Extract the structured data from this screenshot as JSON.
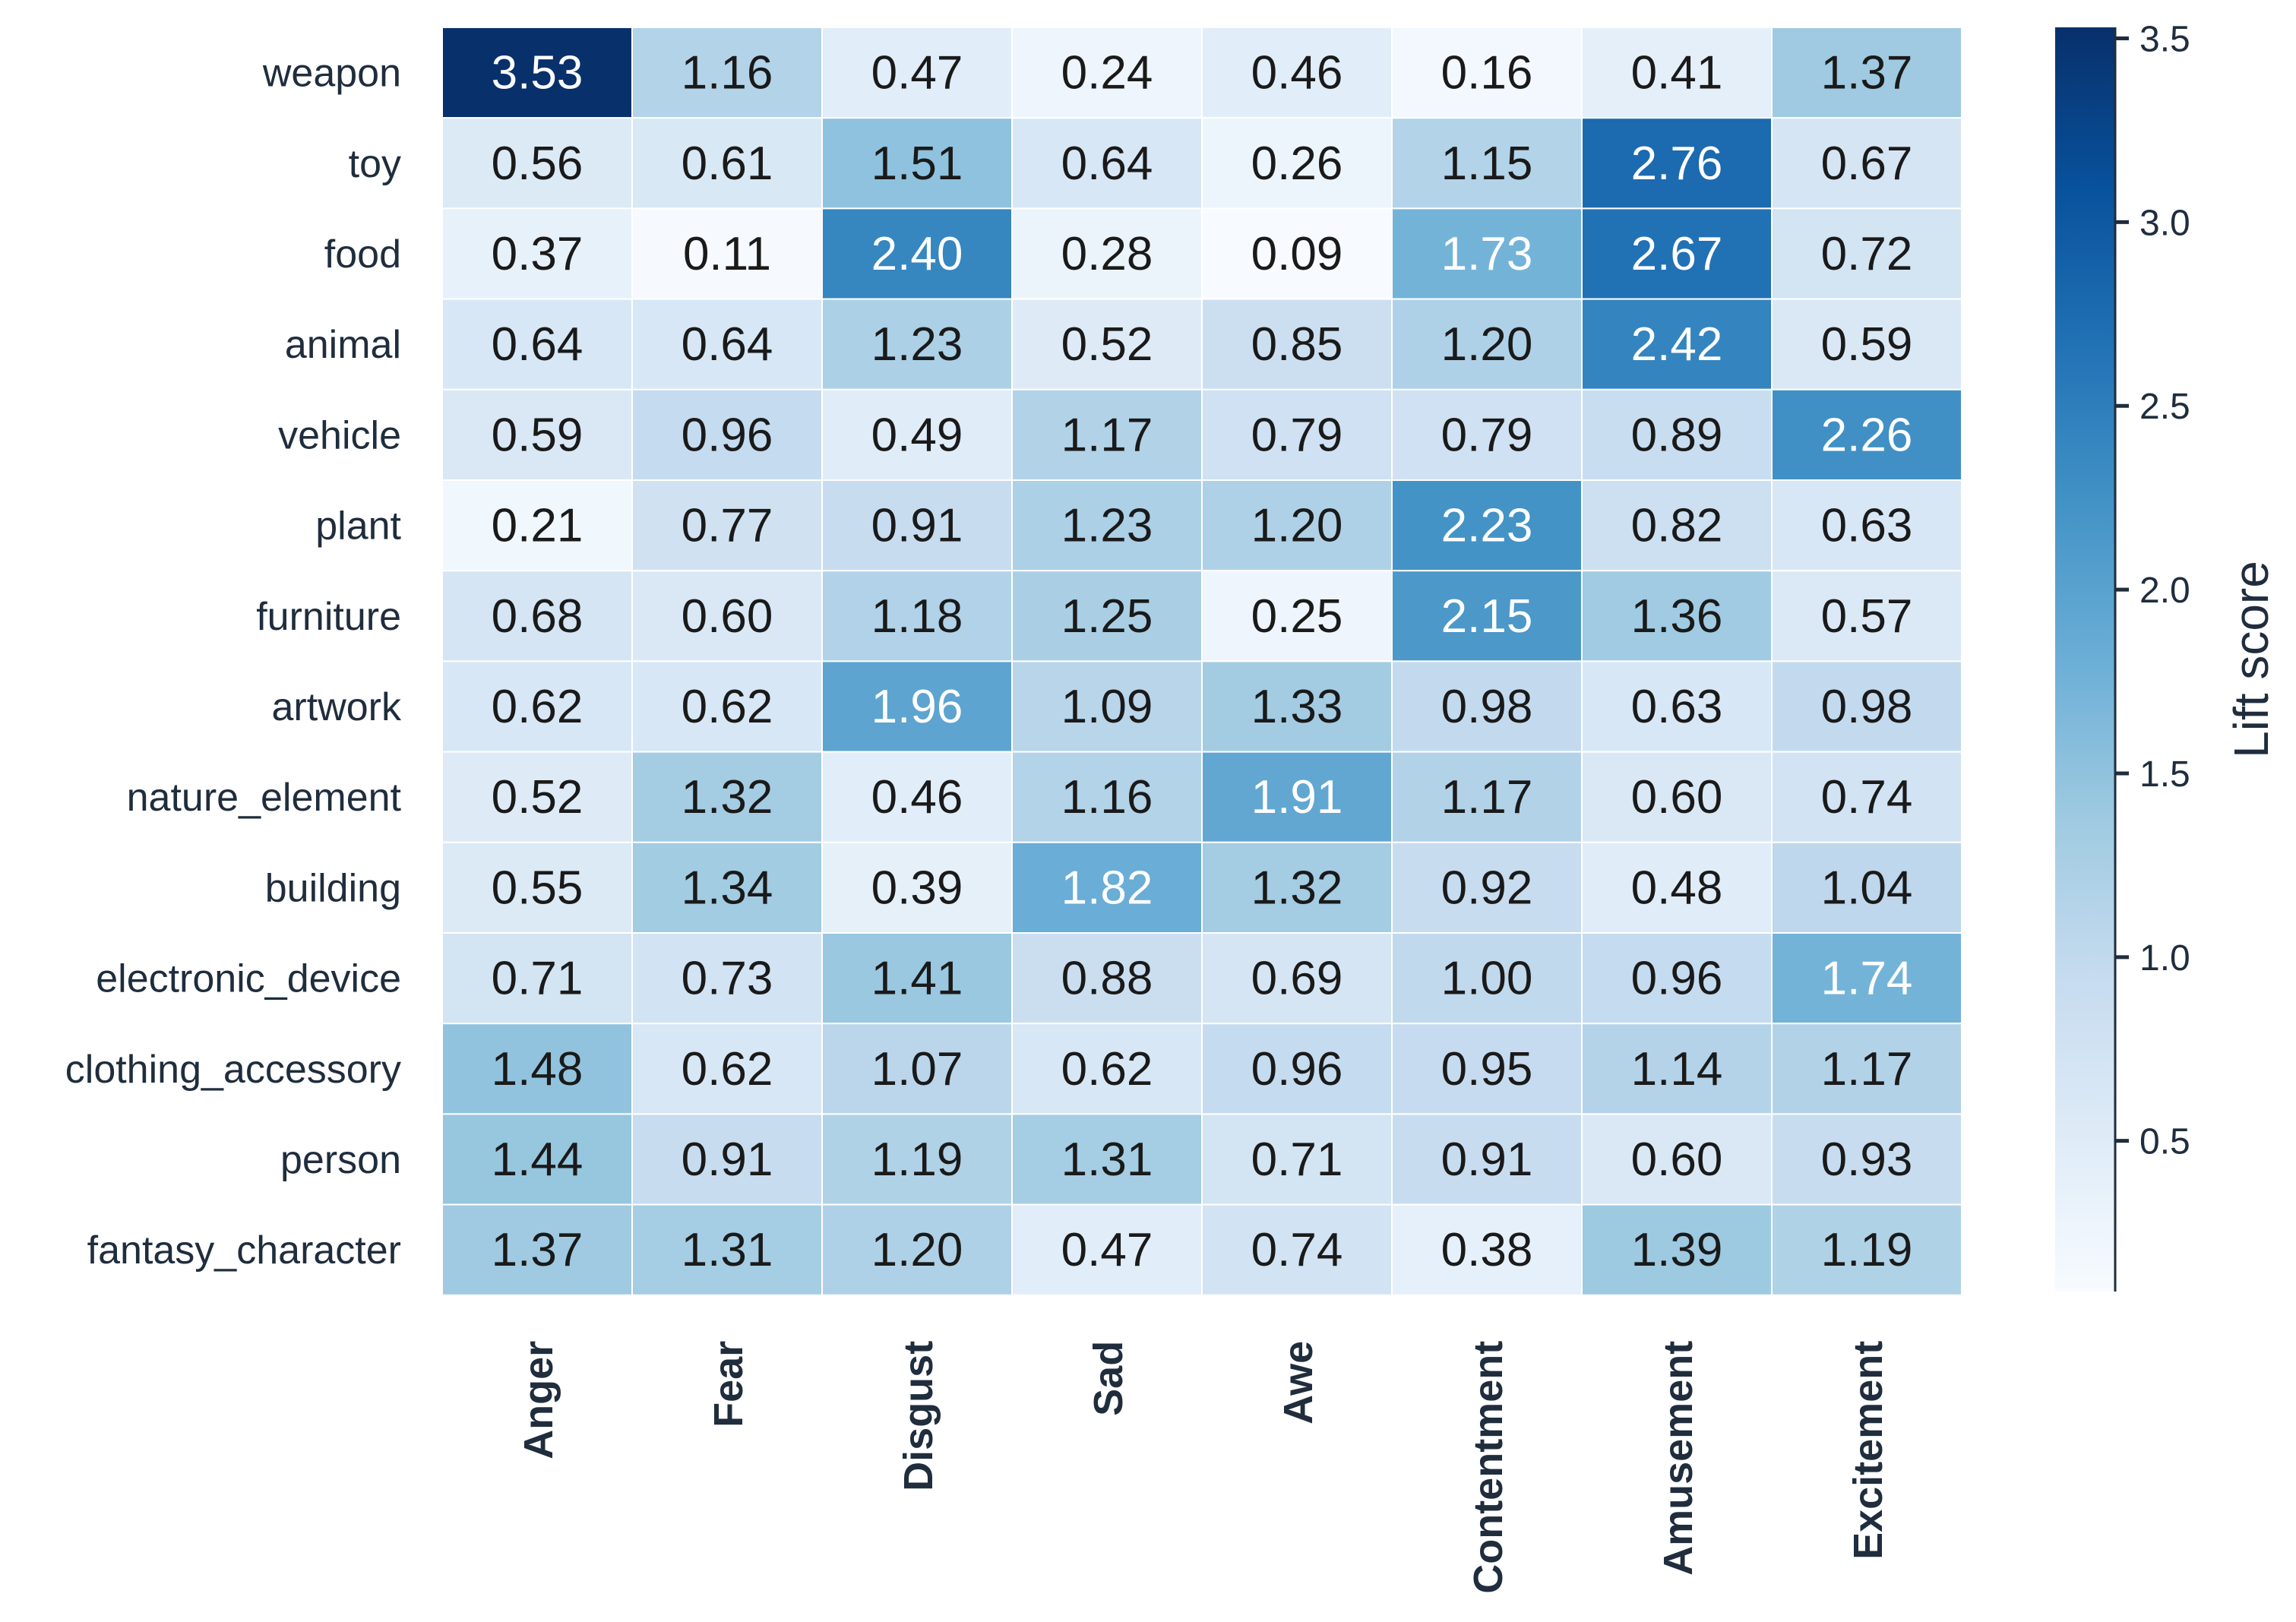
{
  "chart_data": {
    "type": "heatmap",
    "rows": [
      "weapon",
      "toy",
      "food",
      "animal",
      "vehicle",
      "plant",
      "furniture",
      "artwork",
      "nature_element",
      "building",
      "electronic_device",
      "clothing_accessory",
      "person",
      "fantasy_character"
    ],
    "columns": [
      "Anger",
      "Fear",
      "Disgust",
      "Sad",
      "Awe",
      "Contentment",
      "Amusement",
      "Excitement"
    ],
    "values": [
      [
        3.53,
        1.16,
        0.47,
        0.24,
        0.46,
        0.16,
        0.41,
        1.37
      ],
      [
        0.56,
        0.61,
        1.51,
        0.64,
        0.26,
        1.15,
        2.76,
        0.67
      ],
      [
        0.37,
        0.11,
        2.4,
        0.28,
        0.09,
        1.73,
        2.67,
        0.72
      ],
      [
        0.64,
        0.64,
        1.23,
        0.52,
        0.85,
        1.2,
        2.42,
        0.59
      ],
      [
        0.59,
        0.96,
        0.49,
        1.17,
        0.79,
        0.79,
        0.89,
        2.26
      ],
      [
        0.21,
        0.77,
        0.91,
        1.23,
        1.2,
        2.23,
        0.82,
        0.63
      ],
      [
        0.68,
        0.6,
        1.18,
        1.25,
        0.25,
        2.15,
        1.36,
        0.57
      ],
      [
        0.62,
        0.62,
        1.96,
        1.09,
        1.33,
        0.98,
        0.63,
        0.98
      ],
      [
        0.52,
        1.32,
        0.46,
        1.16,
        1.91,
        1.17,
        0.6,
        0.74
      ],
      [
        0.55,
        1.34,
        0.39,
        1.82,
        1.32,
        0.92,
        0.48,
        1.04
      ],
      [
        0.71,
        0.73,
        1.41,
        0.88,
        0.69,
        1.0,
        0.96,
        1.74
      ],
      [
        1.48,
        0.62,
        1.07,
        0.62,
        0.96,
        0.95,
        1.14,
        1.17
      ],
      [
        1.44,
        0.91,
        1.19,
        1.31,
        0.71,
        0.91,
        0.6,
        0.93
      ],
      [
        1.37,
        1.31,
        1.2,
        0.47,
        0.74,
        0.38,
        1.39,
        1.19
      ]
    ],
    "colorbar": {
      "label": "Lift score",
      "ticks": [
        0.5,
        1.0,
        1.5,
        2.0,
        2.5,
        3.0,
        3.5
      ],
      "tick_labels": [
        "0.5",
        "1.0",
        "1.5",
        "2.0",
        "2.5",
        "3.0",
        "3.5"
      ],
      "range": [
        0.09,
        3.53
      ]
    },
    "colormap": "Blues",
    "colormap_stops": [
      "#f7fbff",
      "#deebf7",
      "#c6dbef",
      "#9ecae1",
      "#6baed6",
      "#4292c6",
      "#2171b5",
      "#08519c",
      "#08306b"
    ],
    "text_colors": {
      "dark": "#1a1a1a",
      "light": "#ffffff"
    },
    "title": "",
    "xlabel": "",
    "ylabel": ""
  }
}
